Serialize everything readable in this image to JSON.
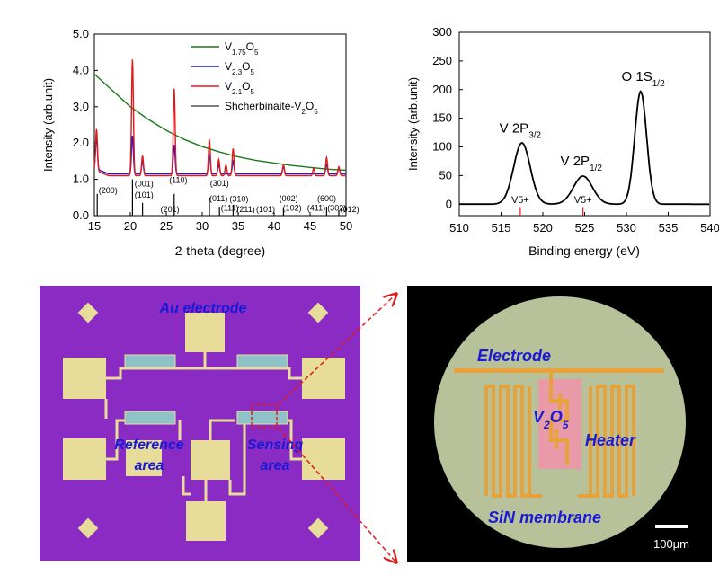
{
  "chart_data": [
    {
      "type": "line",
      "xlabel": "2-theta (degree)",
      "ylabel": "Intensity (arb.unit)",
      "xlim": [
        15,
        50
      ],
      "ylim": [
        0,
        5
      ],
      "xticks": [
        "15",
        "20",
        "25",
        "30",
        "35",
        "40",
        "45",
        "50"
      ],
      "yticks": [
        "0.0",
        "1.0",
        "2.0",
        "3.0",
        "4.0",
        "5.0"
      ],
      "legend_placement": "top-right",
      "series": [
        {
          "name": "V1.75O5",
          "name_base": "V",
          "name_sub1": "1.75",
          "name_mid": "O",
          "name_sub2": "5",
          "color": "#1a7a1a",
          "x": [
            15,
            17.5,
            20,
            22.5,
            25,
            27.5,
            30,
            32.5,
            35,
            37.5,
            40,
            42.5,
            45,
            47.5,
            50
          ],
          "y": [
            3.9,
            3.45,
            3.0,
            2.65,
            2.35,
            2.1,
            1.9,
            1.75,
            1.62,
            1.52,
            1.45,
            1.38,
            1.33,
            1.28,
            1.25
          ]
        },
        {
          "name": "V2.3O5",
          "name_base": "V",
          "name_sub1": "2.3",
          "name_mid": "O",
          "name_sub2": "5",
          "color": "#1a1ad6",
          "baseline": 1.15,
          "peaks": [
            [
              15.3,
              0.9
            ],
            [
              20.3,
              1.05
            ],
            [
              21.7,
              0.35
            ],
            [
              26.1,
              0.8
            ],
            [
              31.0,
              0.55
            ],
            [
              32.3,
              0.25
            ],
            [
              34.3,
              0.35
            ],
            [
              41.3,
              0.2
            ],
            [
              47.3,
              0.25
            ],
            [
              49.0,
              0.15
            ]
          ]
        },
        {
          "name": "V2.1O5",
          "name_base": "V",
          "name_sub1": "2.1",
          "name_mid": "O",
          "name_sub2": "5",
          "color": "#e01a1a",
          "baseline": 1.1,
          "peaks": [
            [
              15.3,
              1.15
            ],
            [
              20.3,
              3.2
            ],
            [
              21.7,
              0.55
            ],
            [
              26.1,
              2.4
            ],
            [
              31.0,
              1.0
            ],
            [
              32.3,
              0.45
            ],
            [
              33.3,
              0.3
            ],
            [
              34.3,
              0.75
            ],
            [
              41.3,
              0.3
            ],
            [
              45.5,
              0.2
            ],
            [
              47.3,
              0.5
            ],
            [
              49.0,
              0.25
            ]
          ]
        },
        {
          "name": "Shcherbinaite-V2O5",
          "name_base": "Shcherbinaite-V",
          "name_sub1": "2",
          "name_mid": "O",
          "name_sub2": "5",
          "color": "#000000",
          "type": "reference_lines",
          "lines": [
            [
              15.4,
              0.6
            ],
            [
              20.3,
              1.0
            ],
            [
              21.7,
              0.35
            ],
            [
              26.1,
              0.6
            ],
            [
              31.0,
              0.5
            ],
            [
              32.4,
              0.25
            ],
            [
              34.3,
              0.3
            ],
            [
              41.3,
              0.2
            ],
            [
              47.3,
              0.25
            ],
            [
              49.0,
              0.15
            ]
          ]
        }
      ],
      "annotations": [
        {
          "text": "(200)",
          "x": 15.6,
          "y": 0.62
        },
        {
          "text": "(001)",
          "x": 20.6,
          "y": 0.8
        },
        {
          "text": "(101)",
          "x": 20.6,
          "y": 0.5
        },
        {
          "text": "(110)",
          "x": 25.4,
          "y": 0.9
        },
        {
          "text": "(201)",
          "x": 24.2,
          "y": 0.1
        },
        {
          "text": "(301)",
          "x": 31.1,
          "y": 0.82
        },
        {
          "text": "(011)",
          "x": 31.0,
          "y": 0.4
        },
        {
          "text": "(310)",
          "x": 33.8,
          "y": 0.38
        },
        {
          "text": "(111)",
          "x": 32.6,
          "y": 0.14
        },
        {
          "text": "(211)",
          "x": 34.8,
          "y": 0.1
        },
        {
          "text": "(101)",
          "x": 37.5,
          "y": 0.1
        },
        {
          "text": "(002)",
          "x": 40.7,
          "y": 0.4
        },
        {
          "text": "(102)",
          "x": 41.2,
          "y": 0.14
        },
        {
          "text": "(411)",
          "x": 44.6,
          "y": 0.14
        },
        {
          "text": "(600)",
          "x": 46.0,
          "y": 0.4
        },
        {
          "text": "(302)",
          "x": 47.4,
          "y": 0.14
        },
        {
          "text": "(012)",
          "x": 49.2,
          "y": 0.1
        }
      ]
    },
    {
      "type": "line",
      "xlabel": "Binding energy (eV)",
      "ylabel": "Intensity (arb.unit)",
      "xlim": [
        510,
        540
      ],
      "ylim": [
        -20,
        300
      ],
      "xticks": [
        "510",
        "515",
        "520",
        "525",
        "530",
        "535",
        "540"
      ],
      "yticks": [
        "0",
        "50",
        "100",
        "150",
        "200",
        "250",
        "300"
      ],
      "series": [
        {
          "name": "",
          "color": "#000000",
          "peaks": [
            [
              517.5,
              107,
              1.4
            ],
            [
              524.8,
              49,
              1.6
            ],
            [
              531.7,
              197,
              1.0
            ]
          ]
        }
      ],
      "markers": [
        {
          "label": "V5+",
          "x": 517.3,
          "color": "#e01a1a"
        },
        {
          "label": "V5+",
          "x": 524.8,
          "color": "#e01a1a"
        }
      ],
      "peak_labels": [
        {
          "base": "V 2P",
          "sub": "3/2",
          "x": 517.3,
          "y": 125
        },
        {
          "base": "V 2P",
          "sub": "1/2",
          "x": 524.6,
          "y": 68
        },
        {
          "base": "O 1S",
          "sub": "1/2",
          "x": 532.0,
          "y": 215
        }
      ]
    }
  ],
  "photo_left": {
    "label_au": "Au electrode",
    "label_reference_1": "Reference",
    "label_reference_2": "area",
    "label_sensing_1": "Sensing",
    "label_sensing_2": "area",
    "substrate_color": "#8a2bc4",
    "pad_color": "#e8dc9a"
  },
  "photo_right": {
    "label_electrode": "Electrode",
    "label_v2o5_base": "V",
    "label_v2o5_sub1": "2",
    "label_v2o5_mid": "O",
    "label_v2o5_sub2": "5",
    "label_heater": "Heater",
    "label_membrane": "SiN membrane",
    "scale_bar": "100μm"
  }
}
